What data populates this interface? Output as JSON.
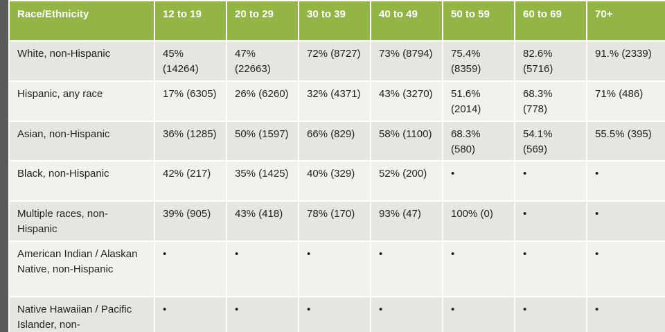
{
  "table": {
    "header": [
      "Race/Ethnicity",
      "12 to 19",
      "20 to 29",
      "30 to 39",
      "40 to 49",
      "50 to 59",
      "60 to 69",
      "70+"
    ],
    "rows": [
      [
        "White, non-Hispanic",
        "45% (14264)",
        "47% (22663)",
        "72% (8727)",
        "73% (8794)",
        "75.4% (8359)",
        "82.6% (5716)",
        "91.% (2339)"
      ],
      [
        "Hispanic, any race",
        "17% (6305)",
        "26% (6260)",
        "32% (4371)",
        "43% (3270)",
        "51.6% (2014)",
        "68.3% (778)",
        "71% (486)"
      ],
      [
        "Asian, non-Hispanic",
        "36% (1285)",
        "50% (1597)",
        "66% (829)",
        "58% (1100)",
        "68.3% (580)",
        "54.1% (569)",
        "55.5% (395)"
      ],
      [
        "Black, non-Hispanic",
        "42% (217)",
        "35% (1425)",
        "40% (329)",
        "52% (200)",
        "•",
        "•",
        "•"
      ],
      [
        "Multiple races, non-Hispanic",
        "39% (905)",
        "43% (418)",
        "78% (170)",
        "93% (47)",
        "100% (0)",
        "•",
        "•"
      ],
      [
        "American Indian / Alaskan Native, non-Hispanic",
        "•",
        "•",
        "•",
        "•",
        "•",
        "•",
        "•"
      ],
      [
        "Native Hawaiian / Pacific Islander, non-",
        "•",
        "•",
        "•",
        "•",
        "•",
        "•",
        "•"
      ]
    ]
  }
}
